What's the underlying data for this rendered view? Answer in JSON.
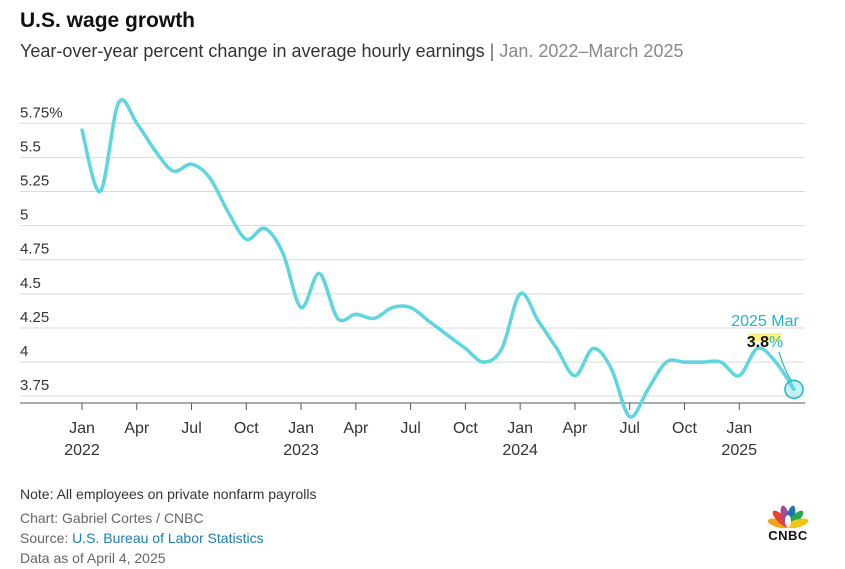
{
  "header": {
    "title": "U.S. wage growth",
    "subtitle_main": "Year-over-year percent change in average hourly earnings",
    "subtitle_sep": "|",
    "subtitle_range": "Jan. 2022–March 2025"
  },
  "chart_data": {
    "type": "line",
    "ylim": [
      3.7,
      5.95
    ],
    "y_ticks": [
      3.75,
      4,
      4.25,
      4.5,
      4.75,
      5,
      5.25,
      5.5,
      5.75
    ],
    "y_tick_labels": [
      "3.75",
      "4",
      "4.25",
      "4.5",
      "4.75",
      "5",
      "5.25",
      "5.5",
      "5.75%"
    ],
    "x_ticks": [
      {
        "month": 0,
        "label": "Jan",
        "year": "2022"
      },
      {
        "month": 3,
        "label": "Apr",
        "year": ""
      },
      {
        "month": 6,
        "label": "Jul",
        "year": ""
      },
      {
        "month": 9,
        "label": "Oct",
        "year": ""
      },
      {
        "month": 12,
        "label": "Jan",
        "year": "2023"
      },
      {
        "month": 15,
        "label": "Apr",
        "year": ""
      },
      {
        "month": 18,
        "label": "Jul",
        "year": ""
      },
      {
        "month": 21,
        "label": "Oct",
        "year": ""
      },
      {
        "month": 24,
        "label": "Jan",
        "year": "2024"
      },
      {
        "month": 27,
        "label": "Apr",
        "year": ""
      },
      {
        "month": 30,
        "label": "Jul",
        "year": ""
      },
      {
        "month": 33,
        "label": "Oct",
        "year": ""
      },
      {
        "month": 36,
        "label": "Jan",
        "year": "2025"
      }
    ],
    "series": [
      {
        "values": [
          5.7,
          5.25,
          5.9,
          5.75,
          5.55,
          5.4,
          5.45,
          5.35,
          5.1,
          4.9,
          4.98,
          4.8,
          4.4,
          4.65,
          4.32,
          4.35,
          4.32,
          4.4,
          4.4,
          4.3,
          4.2,
          4.1,
          4.0,
          4.1,
          4.5,
          4.3,
          4.1,
          3.9,
          4.1,
          3.95,
          3.6,
          3.8,
          4.0,
          4.0,
          4.0,
          4.0,
          3.9,
          4.1,
          4.0,
          3.8
        ],
        "color": "#5dd6e0"
      }
    ],
    "annotation": {
      "period": "2025 Mar",
      "value": "3.8",
      "unit": "%",
      "color": "#22b5c4"
    },
    "grid": true
  },
  "footer": {
    "note": "Note: All employees on private nonfarm payrolls",
    "chart_credit": "Chart: Gabriel Cortes / CNBC",
    "source_prefix": "Source: ",
    "source_link": "U.S. Bureau of Labor Statistics",
    "data_as_of": "Data as of April 4, 2025"
  },
  "logo": {
    "text": "CNBC",
    "icon": "peacock-icon"
  }
}
